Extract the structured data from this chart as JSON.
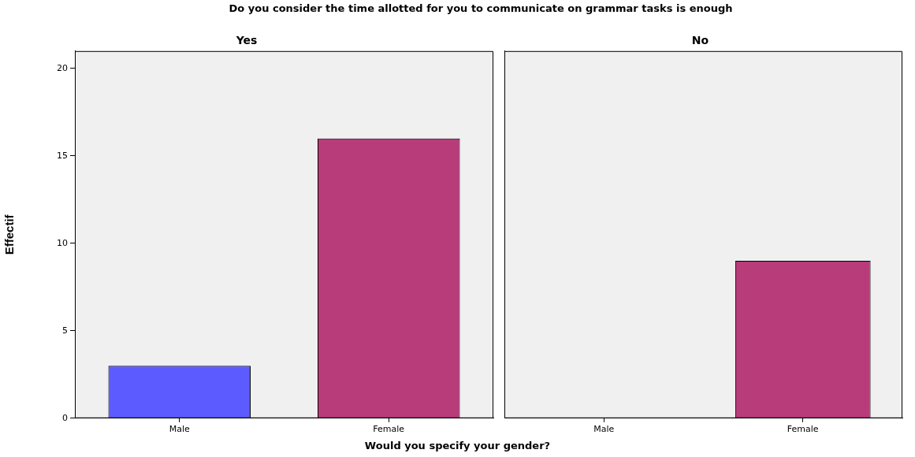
{
  "chart_data": [
    {
      "type": "bar",
      "title": "Do you consider the time allotted for you to communicate on grammar tasks is enough",
      "subtitle": "Yes",
      "xlabel": "Would you specify your gender?",
      "ylabel": "Effectif",
      "categories": [
        "Male",
        "Female"
      ],
      "values": [
        3,
        16
      ],
      "colors": [
        "#5b5bff",
        "#b83b7a"
      ],
      "ylim": [
        0,
        21
      ],
      "yticks": [
        0,
        5,
        10,
        15,
        20
      ],
      "grid": false,
      "legend": false
    },
    {
      "type": "bar",
      "subtitle": "No",
      "categories": [
        "Male",
        "Female"
      ],
      "values": [
        0,
        9
      ],
      "colors": [
        "#5b5bff",
        "#b83b7a"
      ],
      "ylim": [
        0,
        21
      ],
      "yticks": [
        0,
        5,
        10,
        15,
        20
      ],
      "grid": false,
      "legend": false,
      "tick_labels": "x"
    }
  ]
}
